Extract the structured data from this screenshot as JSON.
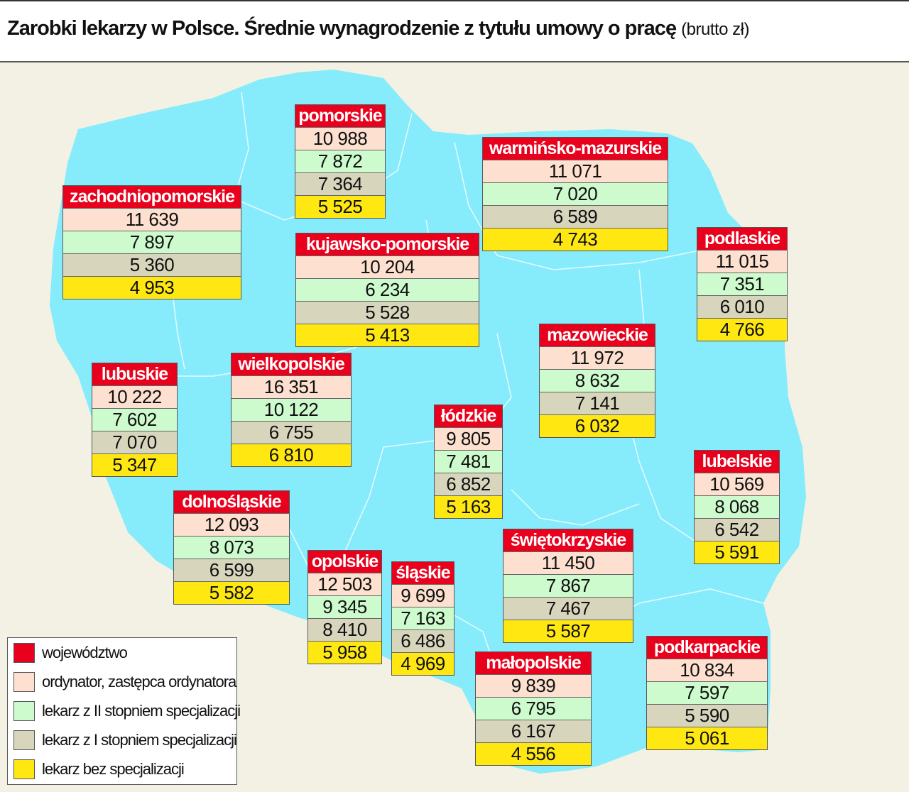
{
  "title": "Zarobki lekarzy w Polsce. Średnie wynagrodzenie z tytułu umowy o pracę",
  "subtitle": "(brutto zł)",
  "colors": {
    "header": "#e8001c",
    "ordynator": "#fde0cf",
    "specII": "#cdfbcd",
    "specI": "#d8d5bd",
    "bez": "#ffe812",
    "land": "#86ecfb",
    "background": "#f3f1e3"
  },
  "legend": [
    {
      "label": "województwo",
      "color": "#e8001c"
    },
    {
      "label": "ordynator, zastępca ordynatora",
      "color": "#fde0cf"
    },
    {
      "label": "lekarz z II stopniem specjalizacji",
      "color": "#cdfbcd"
    },
    {
      "label": "lekarz z I stopniem specjalizacji",
      "color": "#d8d5bd"
    },
    {
      "label": "lekarz bez specjalizacji",
      "color": "#ffe812"
    }
  ],
  "regions": [
    {
      "name": "pomorskie",
      "values": [
        "10 988",
        "7 872",
        "7 364",
        "5 525"
      ]
    },
    {
      "name": "warmińsko-mazurskie",
      "values": [
        "11 071",
        "7 020",
        "6 589",
        "4 743"
      ]
    },
    {
      "name": "zachodniopomorskie",
      "values": [
        "11 639",
        "7 897",
        "5 360",
        "4 953"
      ]
    },
    {
      "name": "kujawsko-pomorskie",
      "values": [
        "10 204",
        "6 234",
        "5 528",
        "5 413"
      ]
    },
    {
      "name": "podlaskie",
      "values": [
        "11 015",
        "7 351",
        "6 010",
        "4 766"
      ]
    },
    {
      "name": "mazowieckie",
      "values": [
        "11 972",
        "8 632",
        "7 141",
        "6 032"
      ]
    },
    {
      "name": "lubuskie",
      "values": [
        "10 222",
        "7 602",
        "7 070",
        "5 347"
      ]
    },
    {
      "name": "wielkopolskie",
      "values": [
        "16 351",
        "10 122",
        "6 755",
        "6 810"
      ]
    },
    {
      "name": "łódzkie",
      "values": [
        "9 805",
        "7 481",
        "6 852",
        "5 163"
      ]
    },
    {
      "name": "lubelskie",
      "values": [
        "10 569",
        "8 068",
        "6 542",
        "5 591"
      ]
    },
    {
      "name": "dolnośląskie",
      "values": [
        "12 093",
        "8 073",
        "6 599",
        "5 582"
      ]
    },
    {
      "name": "świętokrzyskie",
      "values": [
        "11 450",
        "7 867",
        "7 467",
        "5 587"
      ]
    },
    {
      "name": "opolskie",
      "values": [
        "12 503",
        "9 345",
        "8 410",
        "5 958"
      ]
    },
    {
      "name": "śląskie",
      "values": [
        "9 699",
        "7 163",
        "6 486",
        "4 969"
      ]
    },
    {
      "name": "małopolskie",
      "values": [
        "9 839",
        "6 795",
        "6 167",
        "4 556"
      ]
    },
    {
      "name": "podkarpackie",
      "values": [
        "10 834",
        "7 597",
        "5 590",
        "5 061"
      ]
    }
  ]
}
